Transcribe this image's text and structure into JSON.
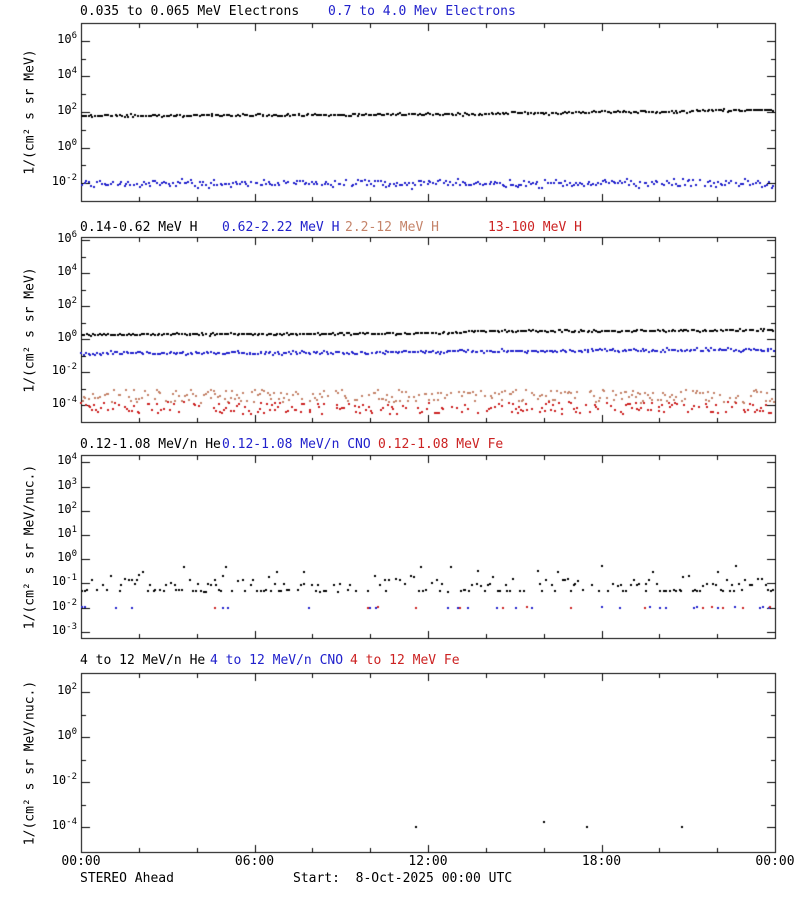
{
  "page": {
    "background": "#ffffff"
  },
  "footer": {
    "spacecraft": "STEREO Ahead",
    "start_label": "Start:  8-Oct-2025 00:00 UTC"
  },
  "axis": {
    "log_base": "10",
    "x_tick_labels": [
      "00:00",
      "06:00",
      "12:00",
      "18:00",
      "00:00"
    ],
    "x_tick_hours": [
      0,
      6,
      12,
      18,
      24
    ],
    "x_minor_step_hours": 2,
    "xlim_hours": [
      0,
      24
    ]
  },
  "colors": {
    "black": "#000000",
    "blue": "#2121cc",
    "tan": "#c5846a",
    "red": "#cc2222",
    "frame": "#000000"
  },
  "chart_data": [
    {
      "type": "scatter",
      "panel": "electron-flux",
      "legend": [
        {
          "label": "0.035 to 0.065 MeV Electrons",
          "color": "black"
        },
        {
          "label": "0.7 to 4.0 Mev Electrons",
          "color": "blue"
        }
      ],
      "ylabel": "1/(cm² s sr MeV)",
      "ylim_log10": [
        -3,
        7
      ],
      "yticks_labeled_exp": [
        6,
        4,
        2,
        0,
        -2
      ],
      "yticks_minor_exp": [
        5,
        3,
        1,
        -1
      ],
      "series": [
        {
          "name": "0.035 to 0.065 MeV Electrons",
          "color": "black",
          "style": "trend",
          "trend_log10": [
            [
              0,
              1.78
            ],
            [
              4,
              1.8
            ],
            [
              8,
              1.82
            ],
            [
              12,
              1.88
            ],
            [
              14,
              1.9
            ],
            [
              17,
              1.97
            ],
            [
              19,
              2.0
            ],
            [
              21,
              2.0
            ],
            [
              21.5,
              2.12
            ],
            [
              23,
              2.07
            ],
            [
              24,
              2.1
            ]
          ],
          "sigma_log10": 0.035,
          "points_per_hour": 13,
          "density": 1.0
        },
        {
          "name": "0.7 to 4.0 Mev Electrons",
          "color": "blue",
          "style": "trend",
          "trend_log10": [
            [
              0,
              -2.02
            ],
            [
              24,
              -2.0
            ]
          ],
          "sigma_log10": 0.11,
          "points_per_hour": 13,
          "density": 0.95
        }
      ]
    },
    {
      "type": "scatter",
      "panel": "proton-flux",
      "legend": [
        {
          "label": "0.14-0.62 MeV H",
          "color": "black"
        },
        {
          "label": "0.62-2.22 MeV H",
          "color": "blue"
        },
        {
          "label": "2.2-12 MeV H",
          "color": "tan"
        },
        {
          "label": "13-100 MeV H",
          "color": "red"
        }
      ],
      "ylabel": "1/(cm² s sr MeV)",
      "ylim_log10": [
        -5,
        6.2
      ],
      "yticks_labeled_exp": [
        6,
        4,
        2,
        0,
        -2,
        -4
      ],
      "yticks_minor_exp": [
        5,
        3,
        1,
        -1,
        -3
      ],
      "series": [
        {
          "name": "0.14-0.62 MeV H",
          "color": "black",
          "style": "trend",
          "trend_log10": [
            [
              0,
              0.3
            ],
            [
              8,
              0.33
            ],
            [
              12,
              0.38
            ],
            [
              13,
              0.4
            ],
            [
              13.5,
              0.5
            ],
            [
              16,
              0.5
            ],
            [
              20,
              0.52
            ],
            [
              24,
              0.55
            ]
          ],
          "sigma_log10": 0.035,
          "points_per_hour": 13,
          "density": 1.0
        },
        {
          "name": "0.62-2.22 MeV H",
          "color": "blue",
          "style": "trend",
          "trend_log10": [
            [
              0,
              -0.85
            ],
            [
              10,
              -0.8
            ],
            [
              13,
              -0.72
            ],
            [
              18,
              -0.68
            ],
            [
              24,
              -0.62
            ]
          ],
          "sigma_log10": 0.05,
          "points_per_hour": 13,
          "density": 1.0
        },
        {
          "name": "2.2-12 MeV H",
          "color": "tan",
          "style": "noise",
          "center_log10": -3.45,
          "spread_log10": 0.38,
          "points_per_hour": 14,
          "density": 0.75
        },
        {
          "name": "13-100 MeV H",
          "color": "red",
          "style": "noise",
          "center_log10": -4.15,
          "spread_log10": 0.35,
          "points_per_hour": 14,
          "density": 0.6
        }
      ]
    },
    {
      "type": "scatter",
      "panel": "low-energy-ion-flux",
      "legend": [
        {
          "label": "0.12-1.08 MeV/n He",
          "color": "black"
        },
        {
          "label": "0.12-1.08 MeV/n CNO",
          "color": "blue"
        },
        {
          "label": "0.12-1.08 MeV Fe",
          "color": "red"
        }
      ],
      "ylabel": "1/(cm² s sr MeV/nuc.)",
      "ylim_log10": [
        -3.25,
        4.3
      ],
      "yticks_labeled_exp": [
        4,
        3,
        2,
        1,
        0,
        -1,
        -2,
        -3
      ],
      "yticks_minor_exp": [],
      "series": [
        {
          "name": "0.12-1.08 MeV/n He",
          "color": "black",
          "style": "levels",
          "levels_log10": [
            -1.3,
            -1.05,
            -0.85,
            -0.7,
            -0.5,
            -0.3
          ],
          "weights": [
            0.38,
            0.26,
            0.15,
            0.1,
            0.07,
            0.04
          ],
          "sigma_log10": 0.02,
          "points_per_hour": 11,
          "density": 0.72
        },
        {
          "name": "0.12-1.08 MeV/n CNO",
          "color": "blue",
          "style": "levels",
          "levels_log10": [
            -2.0
          ],
          "weights": [
            1
          ],
          "sigma_log10": 0.01,
          "points_per_hour": 11,
          "density": 0.1
        },
        {
          "name": "0.12-1.08 MeV Fe",
          "color": "red",
          "style": "levels",
          "levels_log10": [
            -2.0
          ],
          "weights": [
            1
          ],
          "sigma_log10": 0.01,
          "points_per_hour": 11,
          "density": 0.055,
          "ramp": true
        }
      ]
    },
    {
      "type": "scatter",
      "panel": "high-energy-ion-flux",
      "legend": [
        {
          "label": "4 to 12 MeV/n He",
          "color": "black"
        },
        {
          "label": "4 to 12 MeV/n CNO",
          "color": "blue"
        },
        {
          "label": "4 to 12 MeV Fe",
          "color": "red"
        }
      ],
      "ylabel": "1/(cm² s sr MeV/nuc.)",
      "ylim_log10": [
        -5.1,
        2.85
      ],
      "yticks_labeled_exp": [
        2,
        0,
        -2,
        -4
      ],
      "yticks_minor_exp": [
        1,
        -1,
        -3
      ],
      "series": [
        {
          "name": "4 to 12 MeV/n He",
          "color": "black",
          "style": "points",
          "points": [
            [
              11.6,
              -4.0
            ],
            [
              16.0,
              -3.75
            ],
            [
              17.5,
              -4.0
            ],
            [
              20.8,
              -4.0
            ]
          ]
        },
        {
          "name": "4 to 12 MeV/n CNO",
          "color": "blue",
          "style": "points",
          "points": []
        },
        {
          "name": "4 to 12 MeV Fe",
          "color": "red",
          "style": "points",
          "points": []
        }
      ]
    }
  ]
}
